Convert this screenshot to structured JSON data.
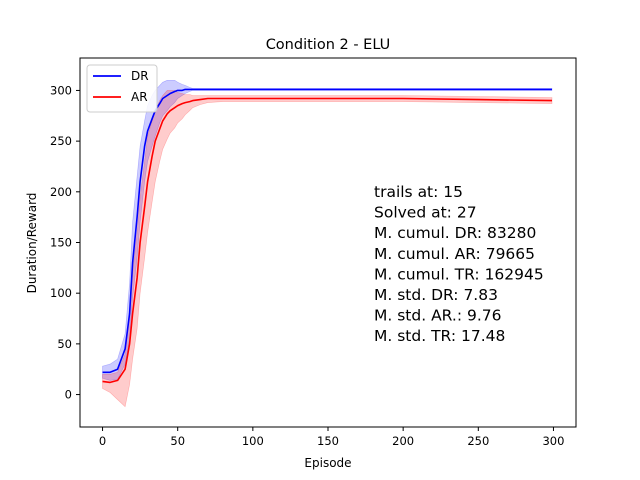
{
  "chart_data": {
    "type": "line",
    "title": "Condition 2 - ELU",
    "xlabel": "Episode",
    "ylabel": "Duration/Reward",
    "xlim": [
      -15,
      315
    ],
    "ylim": [
      -32,
      332
    ],
    "xticks": [
      0,
      50,
      100,
      150,
      200,
      250,
      300
    ],
    "yticks": [
      0,
      50,
      100,
      150,
      200,
      250,
      300
    ],
    "grid": false,
    "legend_position": "top-left",
    "series": [
      {
        "name": "DR",
        "color": "#0000ff",
        "x": [
          0,
          5,
          10,
          15,
          18,
          20,
          23,
          25,
          28,
          30,
          33,
          35,
          38,
          40,
          43,
          45,
          48,
          50,
          53,
          55,
          58,
          60,
          65,
          70,
          100,
          150,
          200,
          250,
          299
        ],
        "y": [
          22,
          22,
          25,
          45,
          80,
          130,
          175,
          210,
          245,
          260,
          272,
          280,
          287,
          292,
          295,
          297,
          299,
          300,
          300,
          301,
          301,
          301,
          301,
          301,
          301,
          301,
          301,
          301,
          301
        ],
        "upper": [
          28,
          30,
          35,
          60,
          110,
          170,
          215,
          245,
          270,
          285,
          295,
          300,
          305,
          308,
          310,
          310,
          310,
          308,
          306,
          305,
          303,
          302,
          302,
          302,
          302,
          302,
          302,
          302,
          302
        ],
        "lower": [
          16,
          14,
          15,
          30,
          55,
          95,
          135,
          170,
          210,
          230,
          245,
          255,
          268,
          275,
          280,
          284,
          288,
          292,
          295,
          297,
          299,
          300,
          300,
          300,
          300,
          300,
          300,
          300,
          300
        ]
      },
      {
        "name": "AR",
        "color": "#ff0000",
        "x": [
          0,
          5,
          10,
          15,
          18,
          20,
          23,
          25,
          28,
          30,
          33,
          35,
          38,
          40,
          43,
          45,
          48,
          50,
          53,
          55,
          58,
          60,
          65,
          70,
          80,
          100,
          150,
          200,
          250,
          299
        ],
        "y": [
          13,
          12,
          14,
          25,
          50,
          80,
          115,
          150,
          185,
          210,
          235,
          250,
          262,
          270,
          277,
          280,
          283,
          285,
          287,
          288,
          289,
          290,
          291,
          292,
          292,
          292,
          292,
          292,
          291,
          290
        ],
        "upper": [
          20,
          20,
          22,
          40,
          80,
          120,
          160,
          195,
          230,
          255,
          270,
          280,
          290,
          295,
          300,
          300,
          300,
          298,
          297,
          296,
          296,
          295,
          295,
          295,
          295,
          295,
          295,
          295,
          294,
          293
        ],
        "lower": [
          6,
          2,
          -5,
          -12,
          10,
          35,
          65,
          100,
          135,
          160,
          190,
          210,
          230,
          242,
          252,
          258,
          263,
          268,
          272,
          276,
          280,
          283,
          286,
          288,
          289,
          289,
          289,
          289,
          288,
          287
        ]
      }
    ],
    "annotations": [
      "trails at: 15",
      "Solved at: 27",
      "M. cumul. DR: 83280",
      "M. cumul. AR: 79665",
      "M. cumul. TR: 162945",
      "M. std. DR: 7.83",
      "M. std. AR.: 9.76",
      "M. std. TR: 17.48"
    ]
  }
}
